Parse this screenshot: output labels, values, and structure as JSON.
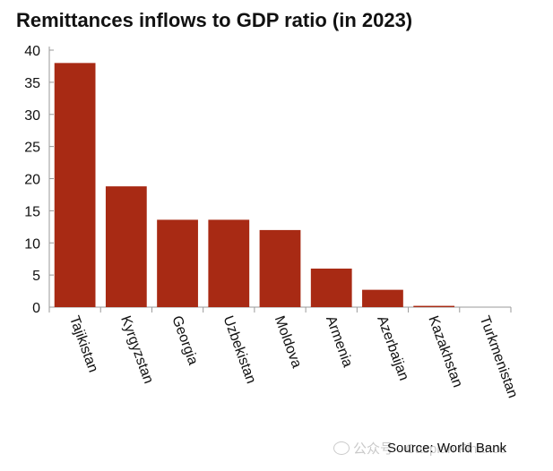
{
  "chart_data": {
    "type": "bar",
    "title": "Remittances inflows to GDP ratio (in 2023)",
    "categories": [
      "Tajikistan",
      "Kyrgyzstan",
      "Georgia",
      "Uzbekistan",
      "Moldova",
      "Armenia",
      "Azerbaijan",
      "Kazakhstan",
      "Turkmenistan"
    ],
    "values": [
      38,
      18.8,
      13.6,
      13.6,
      12,
      6,
      2.7,
      0.2,
      0
    ],
    "xlabel": "",
    "ylabel": "",
    "ylim": [
      0,
      40
    ],
    "yticks": [
      0,
      5,
      10,
      15,
      20,
      25,
      30,
      35,
      40
    ],
    "grid": false,
    "bar_color": "#a82a14"
  },
  "source": "Source: World Bank",
  "watermark": "公众号 · Caspian Finance"
}
